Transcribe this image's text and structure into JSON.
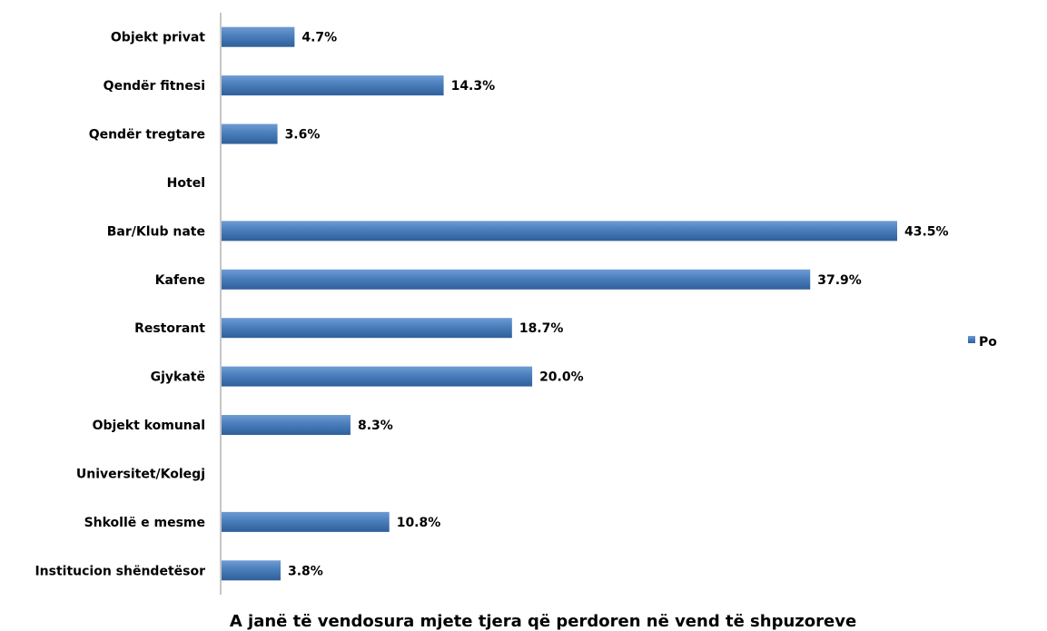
{
  "chart_data": {
    "type": "bar",
    "orientation": "horizontal",
    "title": "",
    "xlabel": "A janë të vendosura mjete tjera që perdoren në vend të shpuzoreve",
    "ylabel": "",
    "xlim": [
      0,
      45
    ],
    "grid": false,
    "legend_position": "right",
    "categories": [
      "Objekt privat",
      "Qendër fitnesi",
      "Qendër tregtare",
      "Hotel",
      "Bar/Klub nate",
      "Kafene",
      "Restorant",
      "Gjykatë",
      "Objekt komunal",
      "Universitet/Kolegj",
      "Shkollë e mesme",
      "Institucion shëndetësor"
    ],
    "series": [
      {
        "name": "Po",
        "color": "#4A7EBB",
        "values": [
          4.7,
          14.3,
          3.6,
          0,
          43.5,
          37.9,
          18.7,
          20.0,
          8.3,
          0,
          10.8,
          3.8
        ],
        "labels": [
          "4.7%",
          "14.3%",
          "3.6%",
          "",
          "43.5%",
          "37.9%",
          "18.7%",
          "20.0%",
          "8.3%",
          "",
          "10.8%",
          "3.8%"
        ]
      }
    ]
  }
}
